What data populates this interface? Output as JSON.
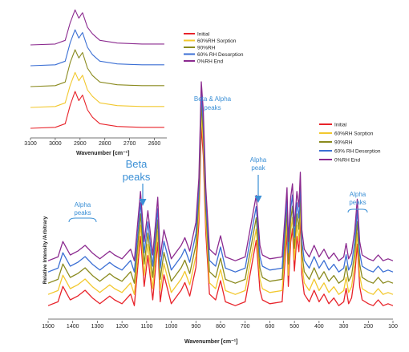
{
  "colors": {
    "Initial": "#e8232a",
    "60%RH Sorption": "#f2c82e",
    "90%RH": "#8a8a1e",
    "60% RH Desorption": "#3b6fd4",
    "0%RH End": "#8b2a8f",
    "annotation": "#3a8fd6"
  },
  "chart_data": [
    {
      "type": "line",
      "id": "inset",
      "xlabel": "Wavenumber [cm⁻¹]",
      "ylabel": "",
      "xlim": [
        3100,
        2550
      ],
      "xticks": [
        "3100",
        "3000",
        "2900",
        "2800",
        "2700",
        "2600"
      ],
      "legend_position": "right",
      "series": [
        {
          "name": "Initial",
          "x": [
            3100,
            3000,
            2960,
            2940,
            2920,
            2905,
            2890,
            2870,
            2850,
            2820,
            2750,
            2700,
            2650,
            2600,
            2560
          ],
          "y": [
            0.0,
            0.01,
            0.05,
            0.25,
            0.4,
            0.3,
            0.36,
            0.2,
            0.12,
            0.05,
            0.02,
            0.015,
            0.01,
            0.01,
            0.01
          ]
        },
        {
          "name": "60%RH Sorption",
          "x": [
            3100,
            3000,
            2960,
            2940,
            2920,
            2905,
            2890,
            2870,
            2850,
            2820,
            2750,
            2700,
            2650,
            2600,
            2560
          ],
          "y": [
            0.0,
            0.01,
            0.05,
            0.24,
            0.38,
            0.29,
            0.35,
            0.19,
            0.12,
            0.05,
            0.02,
            0.015,
            0.01,
            0.01,
            0.01
          ]
        },
        {
          "name": "90%RH",
          "x": [
            3100,
            3000,
            2960,
            2940,
            2920,
            2905,
            2890,
            2870,
            2850,
            2820,
            2750,
            2700,
            2650,
            2600,
            2560
          ],
          "y": [
            0.0,
            0.01,
            0.05,
            0.26,
            0.4,
            0.31,
            0.37,
            0.2,
            0.12,
            0.05,
            0.02,
            0.015,
            0.01,
            0.01,
            0.01
          ]
        },
        {
          "name": "60% RH Desorption",
          "x": [
            3100,
            3000,
            2960,
            2940,
            2920,
            2905,
            2890,
            2870,
            2850,
            2820,
            2750,
            2700,
            2650,
            2600,
            2560
          ],
          "y": [
            0.0,
            0.01,
            0.05,
            0.25,
            0.39,
            0.3,
            0.36,
            0.2,
            0.12,
            0.05,
            0.02,
            0.015,
            0.01,
            0.01,
            0.01
          ]
        },
        {
          "name": "0%RH End",
          "x": [
            3100,
            3000,
            2960,
            2940,
            2920,
            2905,
            2890,
            2870,
            2850,
            2820,
            2750,
            2700,
            2650,
            2600,
            2560
          ],
          "y": [
            0.0,
            0.01,
            0.05,
            0.24,
            0.38,
            0.29,
            0.35,
            0.19,
            0.12,
            0.05,
            0.02,
            0.015,
            0.01,
            0.01,
            0.01
          ]
        }
      ]
    },
    {
      "type": "line",
      "id": "main",
      "xlabel": "Wavenumber [cm⁻¹]",
      "ylabel": "Relative Intensity /Arbitrary",
      "xlim": [
        1500,
        100
      ],
      "xticks": [
        "1500",
        "1400",
        "1300",
        "1200",
        "1100",
        "1000",
        "900",
        "800",
        "700",
        "600",
        "500",
        "400",
        "300",
        "200",
        "100"
      ],
      "legend_position": "top-right",
      "series": [
        {
          "name": "Initial",
          "x": [
            1500,
            1460,
            1440,
            1410,
            1380,
            1350,
            1320,
            1290,
            1250,
            1230,
            1200,
            1165,
            1150,
            1125,
            1110,
            1095,
            1075,
            1055,
            1045,
            1030,
            1000,
            960,
            945,
            925,
            900,
            888,
            878,
            870,
            860,
            845,
            820,
            800,
            780,
            740,
            700,
            655,
            640,
            630,
            600,
            550,
            530,
            525,
            515,
            508,
            500,
            490,
            482,
            476,
            470,
            460,
            440,
            420,
            400,
            380,
            360,
            340,
            320,
            300,
            290,
            280,
            268,
            255,
            245,
            235,
            225,
            200,
            180,
            160,
            140,
            120,
            100
          ],
          "y": [
            0.02,
            0.04,
            0.12,
            0.05,
            0.07,
            0.1,
            0.06,
            0.03,
            0.07,
            0.05,
            0.03,
            0.08,
            0.02,
            0.38,
            0.12,
            0.28,
            0.05,
            0.35,
            0.04,
            0.18,
            0.03,
            0.1,
            0.14,
            0.07,
            0.22,
            0.45,
            0.95,
            0.8,
            0.4,
            0.08,
            0.05,
            0.15,
            0.04,
            0.02,
            0.04,
            0.36,
            0.1,
            0.05,
            0.03,
            0.04,
            0.4,
            0.12,
            0.35,
            0.42,
            0.2,
            0.38,
            0.3,
            0.48,
            0.18,
            0.08,
            0.04,
            0.1,
            0.04,
            0.08,
            0.03,
            0.06,
            0.02,
            0.04,
            0.11,
            0.03,
            0.06,
            0.18,
            0.34,
            0.12,
            0.05,
            0.03,
            0.02,
            0.05,
            0.02,
            0.03,
            0.02
          ]
        },
        {
          "name": "60%RH Sorption",
          "x": [
            1500,
            1460,
            1440,
            1410,
            1380,
            1350,
            1320,
            1290,
            1250,
            1230,
            1200,
            1165,
            1150,
            1125,
            1110,
            1095,
            1075,
            1055,
            1045,
            1030,
            1000,
            960,
            945,
            925,
            900,
            888,
            878,
            870,
            860,
            845,
            820,
            800,
            780,
            740,
            700,
            655,
            640,
            630,
            600,
            550,
            530,
            525,
            515,
            508,
            500,
            490,
            482,
            476,
            470,
            460,
            440,
            420,
            400,
            380,
            360,
            340,
            320,
            300,
            290,
            280,
            268,
            255,
            245,
            235,
            225,
            200,
            180,
            160,
            140,
            120,
            100
          ],
          "y": [
            0.02,
            0.04,
            0.12,
            0.05,
            0.07,
            0.1,
            0.06,
            0.03,
            0.07,
            0.05,
            0.03,
            0.08,
            0.02,
            0.38,
            0.12,
            0.28,
            0.05,
            0.35,
            0.04,
            0.18,
            0.03,
            0.1,
            0.14,
            0.07,
            0.22,
            0.45,
            0.95,
            0.8,
            0.4,
            0.08,
            0.05,
            0.15,
            0.04,
            0.02,
            0.04,
            0.36,
            0.1,
            0.05,
            0.03,
            0.04,
            0.4,
            0.12,
            0.35,
            0.42,
            0.2,
            0.38,
            0.3,
            0.48,
            0.18,
            0.08,
            0.04,
            0.1,
            0.04,
            0.08,
            0.03,
            0.06,
            0.02,
            0.04,
            0.11,
            0.03,
            0.06,
            0.18,
            0.34,
            0.12,
            0.05,
            0.03,
            0.02,
            0.05,
            0.02,
            0.03,
            0.02
          ]
        },
        {
          "name": "90%RH",
          "x": [
            1500,
            1460,
            1440,
            1410,
            1380,
            1350,
            1320,
            1290,
            1250,
            1230,
            1200,
            1165,
            1150,
            1125,
            1110,
            1095,
            1075,
            1055,
            1045,
            1030,
            1000,
            960,
            945,
            925,
            900,
            888,
            878,
            870,
            860,
            845,
            820,
            800,
            780,
            740,
            700,
            655,
            640,
            630,
            600,
            550,
            530,
            525,
            515,
            508,
            500,
            490,
            482,
            476,
            470,
            460,
            440,
            420,
            400,
            380,
            360,
            340,
            320,
            300,
            290,
            280,
            268,
            255,
            245,
            235,
            225,
            200,
            180,
            160,
            140,
            120,
            100
          ],
          "y": [
            0.02,
            0.04,
            0.12,
            0.05,
            0.07,
            0.1,
            0.06,
            0.03,
            0.07,
            0.05,
            0.03,
            0.08,
            0.02,
            0.38,
            0.12,
            0.28,
            0.05,
            0.35,
            0.04,
            0.18,
            0.03,
            0.1,
            0.14,
            0.07,
            0.22,
            0.45,
            0.95,
            0.8,
            0.4,
            0.08,
            0.05,
            0.15,
            0.04,
            0.02,
            0.04,
            0.36,
            0.1,
            0.05,
            0.03,
            0.04,
            0.4,
            0.12,
            0.35,
            0.42,
            0.2,
            0.38,
            0.3,
            0.48,
            0.18,
            0.08,
            0.04,
            0.1,
            0.04,
            0.08,
            0.03,
            0.06,
            0.02,
            0.04,
            0.11,
            0.03,
            0.06,
            0.18,
            0.34,
            0.12,
            0.05,
            0.03,
            0.02,
            0.05,
            0.02,
            0.03,
            0.02
          ]
        },
        {
          "name": "60% RH Desorption",
          "x": [
            1500,
            1460,
            1440,
            1410,
            1380,
            1350,
            1320,
            1290,
            1250,
            1230,
            1200,
            1165,
            1150,
            1125,
            1110,
            1095,
            1075,
            1055,
            1045,
            1030,
            1000,
            960,
            945,
            925,
            900,
            888,
            878,
            870,
            860,
            845,
            820,
            800,
            780,
            740,
            700,
            655,
            640,
            630,
            600,
            550,
            530,
            525,
            515,
            508,
            500,
            490,
            482,
            476,
            470,
            460,
            440,
            420,
            400,
            380,
            360,
            340,
            320,
            300,
            290,
            280,
            268,
            255,
            245,
            235,
            225,
            200,
            180,
            160,
            140,
            120,
            100
          ],
          "y": [
            0.02,
            0.04,
            0.12,
            0.05,
            0.07,
            0.1,
            0.06,
            0.03,
            0.07,
            0.05,
            0.03,
            0.08,
            0.02,
            0.38,
            0.12,
            0.28,
            0.05,
            0.35,
            0.04,
            0.18,
            0.03,
            0.1,
            0.14,
            0.07,
            0.22,
            0.45,
            0.95,
            0.8,
            0.4,
            0.08,
            0.05,
            0.15,
            0.04,
            0.02,
            0.04,
            0.36,
            0.1,
            0.05,
            0.03,
            0.04,
            0.4,
            0.12,
            0.35,
            0.42,
            0.2,
            0.38,
            0.3,
            0.48,
            0.18,
            0.08,
            0.04,
            0.1,
            0.04,
            0.08,
            0.03,
            0.06,
            0.02,
            0.04,
            0.11,
            0.03,
            0.06,
            0.18,
            0.34,
            0.12,
            0.05,
            0.03,
            0.02,
            0.05,
            0.02,
            0.03,
            0.02
          ]
        },
        {
          "name": "0%RH End",
          "x": [
            1500,
            1460,
            1440,
            1410,
            1380,
            1350,
            1320,
            1290,
            1250,
            1230,
            1200,
            1165,
            1150,
            1125,
            1110,
            1095,
            1075,
            1055,
            1045,
            1030,
            1000,
            960,
            945,
            925,
            900,
            888,
            878,
            870,
            860,
            845,
            820,
            800,
            780,
            740,
            700,
            655,
            640,
            630,
            600,
            550,
            530,
            525,
            515,
            508,
            500,
            490,
            482,
            476,
            470,
            460,
            440,
            420,
            400,
            380,
            360,
            340,
            320,
            300,
            290,
            280,
            268,
            255,
            245,
            235,
            225,
            200,
            180,
            160,
            140,
            120,
            100
          ],
          "y": [
            0.02,
            0.04,
            0.12,
            0.05,
            0.07,
            0.1,
            0.06,
            0.03,
            0.07,
            0.05,
            0.03,
            0.08,
            0.02,
            0.38,
            0.12,
            0.28,
            0.05,
            0.35,
            0.04,
            0.18,
            0.03,
            0.1,
            0.14,
            0.07,
            0.22,
            0.45,
            0.95,
            0.8,
            0.4,
            0.08,
            0.05,
            0.15,
            0.04,
            0.02,
            0.04,
            0.36,
            0.1,
            0.05,
            0.03,
            0.04,
            0.4,
            0.12,
            0.35,
            0.42,
            0.2,
            0.38,
            0.3,
            0.48,
            0.18,
            0.08,
            0.04,
            0.1,
            0.04,
            0.08,
            0.03,
            0.06,
            0.02,
            0.04,
            0.11,
            0.03,
            0.06,
            0.18,
            0.34,
            0.12,
            0.05,
            0.03,
            0.02,
            0.05,
            0.02,
            0.03,
            0.02
          ]
        }
      ],
      "annotations": [
        {
          "id": "alpha-left",
          "lines": [
            "Alpha",
            "peaks"
          ]
        },
        {
          "id": "beta",
          "lines": [
            "Beta",
            "peaks"
          ]
        },
        {
          "id": "beta-alpha",
          "lines": [
            "Beta & Alpha",
            "peaks"
          ]
        },
        {
          "id": "alpha-mid",
          "lines": [
            "Alpha",
            "peak"
          ]
        },
        {
          "id": "alpha-right",
          "lines": [
            "Alpha",
            "peaks"
          ]
        }
      ]
    }
  ]
}
